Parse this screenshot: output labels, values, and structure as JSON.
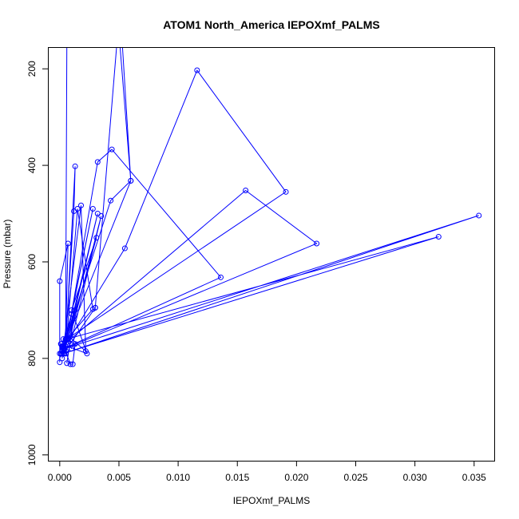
{
  "chart_data": {
    "type": "line",
    "title": "ATOM1 North_America IEPOXmf_PALMS",
    "xlabel": "IEPOXmf_PALMS",
    "ylabel": "Pressure (mbar)",
    "xlim": [
      -0.001,
      0.0367
    ],
    "ylim": [
      1012,
      155
    ],
    "y_reversed": true,
    "x_ticks": [
      0.0,
      0.005,
      0.01,
      0.015,
      0.02,
      0.025,
      0.03,
      0.035
    ],
    "x_tick_labels": [
      "0.000",
      "0.005",
      "0.010",
      "0.015",
      "0.020",
      "0.025",
      "0.030",
      "0.035"
    ],
    "y_ticks": [
      200,
      400,
      600,
      800,
      1000
    ],
    "y_tick_labels": [
      "200",
      "400",
      "600",
      "800",
      "1000"
    ],
    "grid": false,
    "color": "#0000ff",
    "series": [
      {
        "x": [
          0.0006,
          0.0013,
          0.0002,
          0.0001,
          0.0004,
          0.0009,
          0.0011,
          0.0013,
          0.0003,
          0.0001
        ],
        "y": [
          810,
          700,
          790,
          770,
          780,
          812,
          812,
          770,
          760,
          790
        ]
      },
      {
        "x": [
          0.0002,
          0.0028,
          0.0004,
          0.0032,
          0.0007,
          0.0031,
          0.001,
          0.0023,
          0.0001,
          0.0
        ],
        "y": [
          800,
          490,
          780,
          500,
          760,
          550,
          700,
          790,
          770,
          790
        ]
      },
      {
        "x": [
          0.0,
          0.0,
          0.0007,
          0.0005,
          0.0012,
          0.0013,
          0.0005,
          0.001,
          0.0002
        ],
        "y": [
          808,
          640,
          562,
          760,
          495,
          402,
          775,
          708,
          775
        ]
      },
      {
        "x": [
          0.0002,
          0.0043,
          0.006,
          0.0003,
          0.0018,
          0.0022,
          0.001,
          0.0035,
          0.0005
        ],
        "y": [
          785,
          473,
          432,
          780,
          483,
          785,
          760,
          505,
          790
        ]
      },
      {
        "x": [
          0.0004,
          0.0032,
          0.0044,
          0.0136,
          0.0003,
          0.0055,
          0.0116,
          0.0191,
          0.0006
        ],
        "y": [
          790,
          393,
          367,
          632,
          780,
          572,
          203,
          455,
          760
        ]
      },
      {
        "x": [
          0.0002,
          0.0157,
          0.0217,
          0.0004,
          0.0354,
          0.0003,
          0.032,
          0.0006,
          0.001
        ],
        "y": [
          775,
          452,
          562,
          780,
          504,
          790,
          548,
          760,
          780
        ]
      },
      {
        "x": [
          0.0006,
          0.0028,
          0.0015,
          0.0005,
          0.003
        ],
        "y": [
          760,
          698,
          490,
          784,
          695
        ]
      },
      {
        "x": [
          0.003,
          0.0048,
          0.005,
          0.0045,
          0.0048,
          0.0053,
          0.006,
          0.0051
        ],
        "y": [
          695,
          155,
          155,
          155,
          155,
          155,
          432,
          155
        ]
      },
      {
        "x": [
          0.0005,
          0.0006,
          0.0008,
          0.0013,
          0.0025,
          0.002,
          0.0015
        ],
        "y": [
          760,
          155,
          155,
          155,
          155,
          155,
          155
        ]
      }
    ]
  }
}
